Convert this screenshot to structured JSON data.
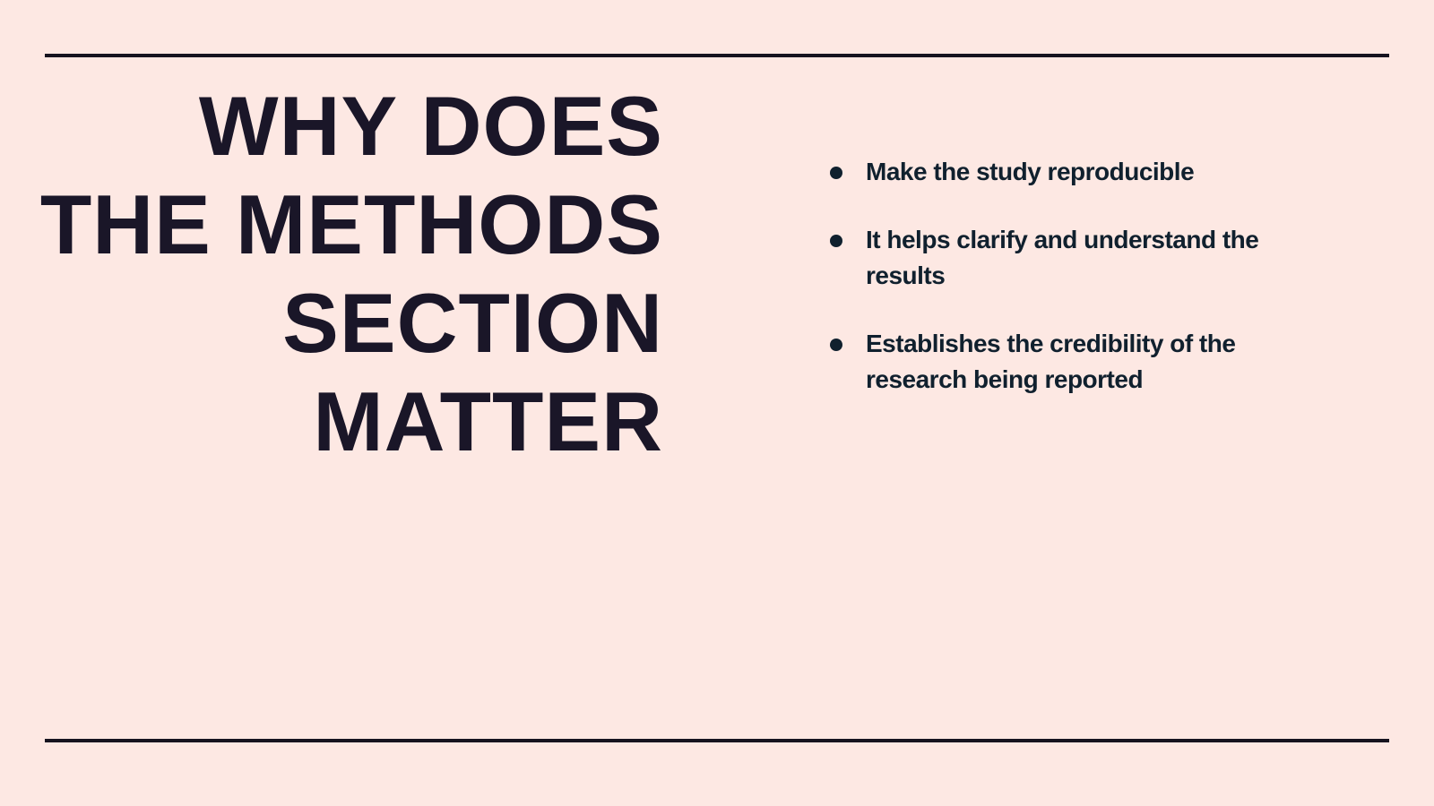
{
  "slide": {
    "title_lines": [
      "WHY DOES",
      "THE METHODS",
      "SECTION",
      "MATTER"
    ],
    "bullets": [
      "Make the study reproducible",
      "It helps clarify and understand the results",
      "Establishes the credibility of the research being reported"
    ]
  },
  "colors": {
    "background": "#fde8e3",
    "rule": "#16131f",
    "title": "#1a1628",
    "bullet_text": "#10202e"
  }
}
